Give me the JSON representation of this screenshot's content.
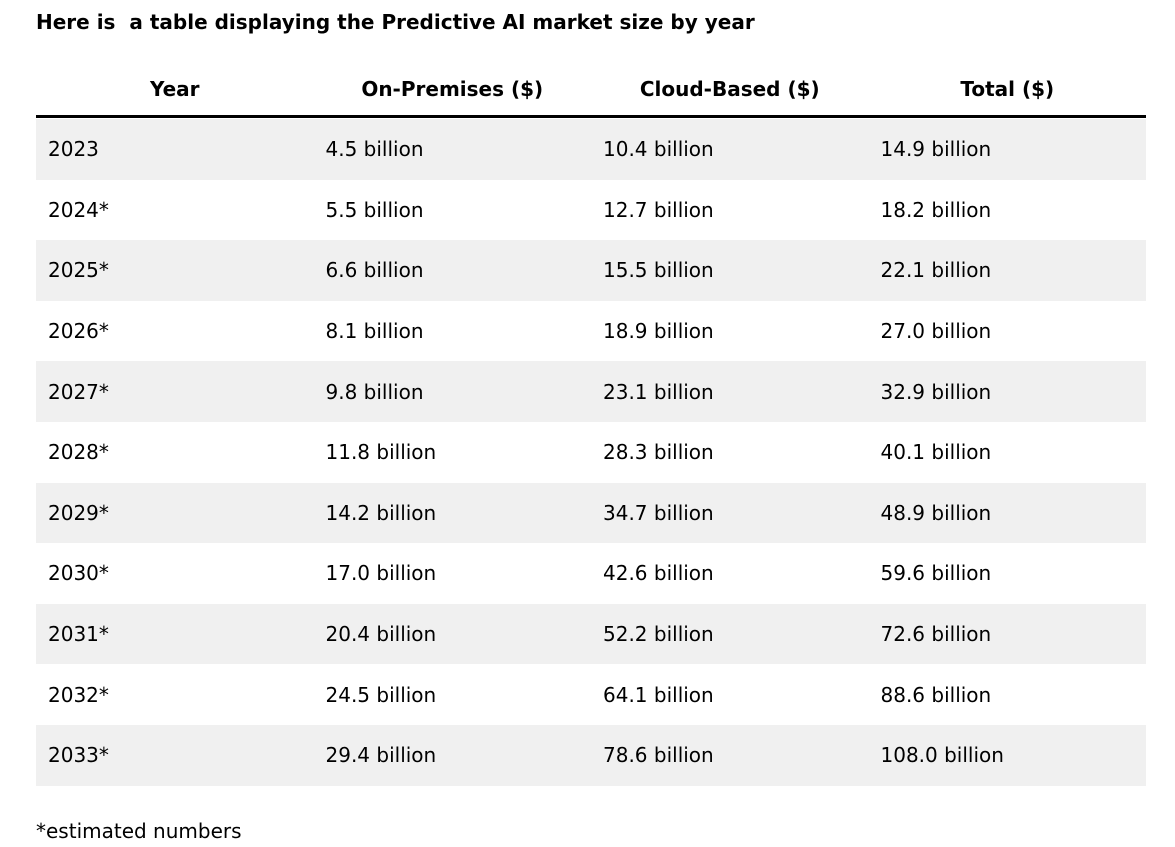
{
  "heading": "Here is  a table displaying the Predictive AI market size by year",
  "table": {
    "headers": [
      "Year",
      "On-Premises ($)",
      "Cloud-Based ($)",
      "Total ($)"
    ],
    "rows": [
      [
        "2023",
        "4.5 billion",
        "10.4 billion",
        "14.9 billion"
      ],
      [
        "2024*",
        "5.5 billion",
        "12.7 billion",
        "18.2 billion"
      ],
      [
        "2025*",
        "6.6 billion",
        "15.5 billion",
        "22.1 billion"
      ],
      [
        "2026*",
        "8.1 billion",
        "18.9 billion",
        "27.0 billion"
      ],
      [
        "2027*",
        "9.8 billion",
        "23.1 billion",
        "32.9 billion"
      ],
      [
        "2028*",
        "11.8 billion",
        "28.3 billion",
        "40.1 billion"
      ],
      [
        "2029*",
        "14.2 billion",
        "34.7 billion",
        "48.9 billion"
      ],
      [
        "2030*",
        "17.0 billion",
        "42.6 billion",
        "59.6 billion"
      ],
      [
        "2031*",
        "20.4 billion",
        "52.2 billion",
        "72.6 billion"
      ],
      [
        "2032*",
        "24.5 billion",
        "64.1 billion",
        "88.6 billion"
      ],
      [
        "2033*",
        "29.4 billion",
        "78.6 billion",
        "108.0 billion"
      ]
    ]
  },
  "footnote": "*estimated numbers",
  "colors": {
    "text": "#000000",
    "shaded_row": "#f0f0f0",
    "header_rule": "#000000"
  }
}
